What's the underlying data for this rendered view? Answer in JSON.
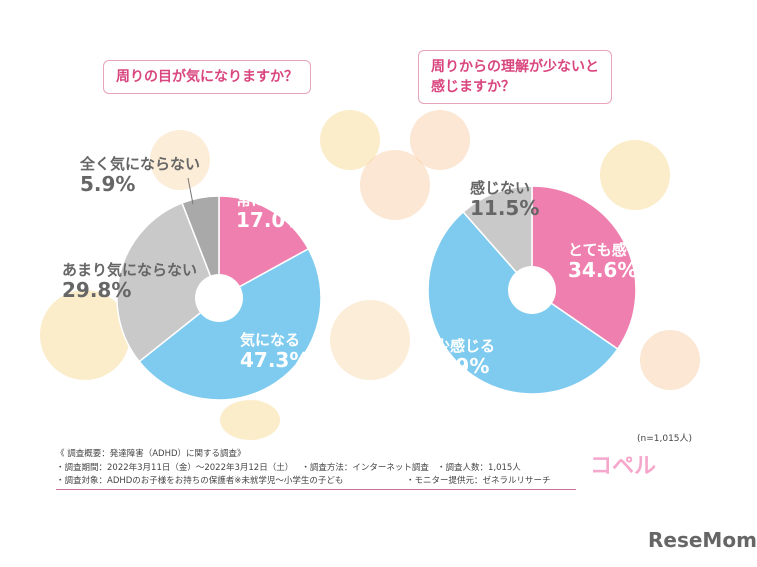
{
  "chart_data": [
    {
      "type": "pie",
      "title": "周りの目が気になりますか？",
      "slices": [
        {
          "label": "常に気になる",
          "value": 17.0,
          "display": "17.0%",
          "color": "#ef7fae"
        },
        {
          "label": "気になる",
          "value": 47.3,
          "display": "47.3%",
          "color": "#7ecbef"
        },
        {
          "label": "あまり気にならない",
          "value": 29.8,
          "display": "29.8%",
          "color": "#c9c9c9"
        },
        {
          "label": "全く気にならない",
          "value": 5.9,
          "display": "5.9%",
          "color": "#a9a9a9"
        }
      ]
    },
    {
      "type": "pie",
      "title": "周りからの理解が少ないと感じますか？",
      "slices": [
        {
          "label": "とても感じる",
          "value": 34.6,
          "display": "34.6%",
          "color": "#ef7fae"
        },
        {
          "label": "多少感じる",
          "value": 53.9,
          "display": "53.9%",
          "color": "#7ecbef"
        },
        {
          "label": "感じない",
          "value": 11.5,
          "display": "11.5%",
          "color": "#c9c9c9"
        }
      ]
    }
  ],
  "title_right_line1": "周りからの理解が少ないと",
  "title_right_line2": "感じますか？",
  "sample": "(n=1,015人)",
  "footer": {
    "heading": "《 調査概要：発達障害（ADHD）に関する調査》",
    "period": "・調査期間：2022年3月11日（金）～2022年3月12日（土）",
    "method": "・調査方法：インターネット調査",
    "count": "・調査人数：1,015人",
    "target": "・調査対象：ADHDのお子様をお持ちの保護者※未就学児～小学生の子ども",
    "provider": "・モニター提供元：ゼネラルリサーチ"
  },
  "logo": "コペル",
  "watermark": "ReseMom"
}
